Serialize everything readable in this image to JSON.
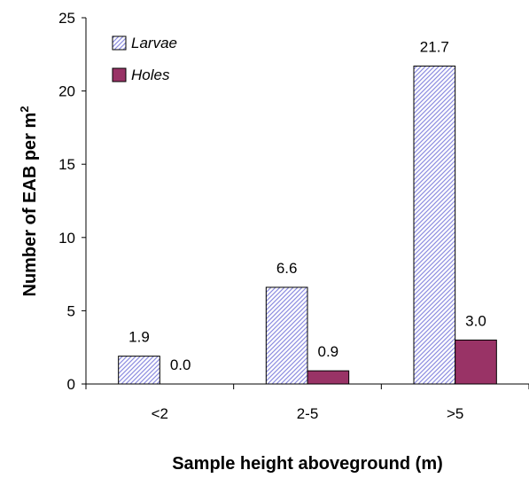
{
  "chart_data": {
    "type": "bar",
    "categories": [
      "<2",
      "2-5",
      ">5"
    ],
    "series": [
      {
        "name": "Larvae",
        "values": [
          1.9,
          6.6,
          21.7
        ],
        "value_labels": [
          "1.9",
          "6.6",
          "21.7"
        ],
        "pattern": "diagonal-hatch",
        "color": "#8c8ce0",
        "fill": "#ffffff",
        "edge": "#000000"
      },
      {
        "name": "Holes",
        "values": [
          0.0,
          0.9,
          3.0
        ],
        "value_labels": [
          "0.0",
          "0.9",
          "3.0"
        ],
        "pattern": "solid",
        "color": "#993366",
        "edge": "#000000"
      }
    ],
    "xlabel": "Sample height aboveground (m)",
    "ylabel": "Number of EAB per m",
    "ylabel_superscript": "2",
    "ylim": [
      0,
      25
    ],
    "yticks": [
      0,
      5,
      10,
      15,
      20,
      25
    ],
    "grid": false,
    "legend_position": "top-left"
  }
}
